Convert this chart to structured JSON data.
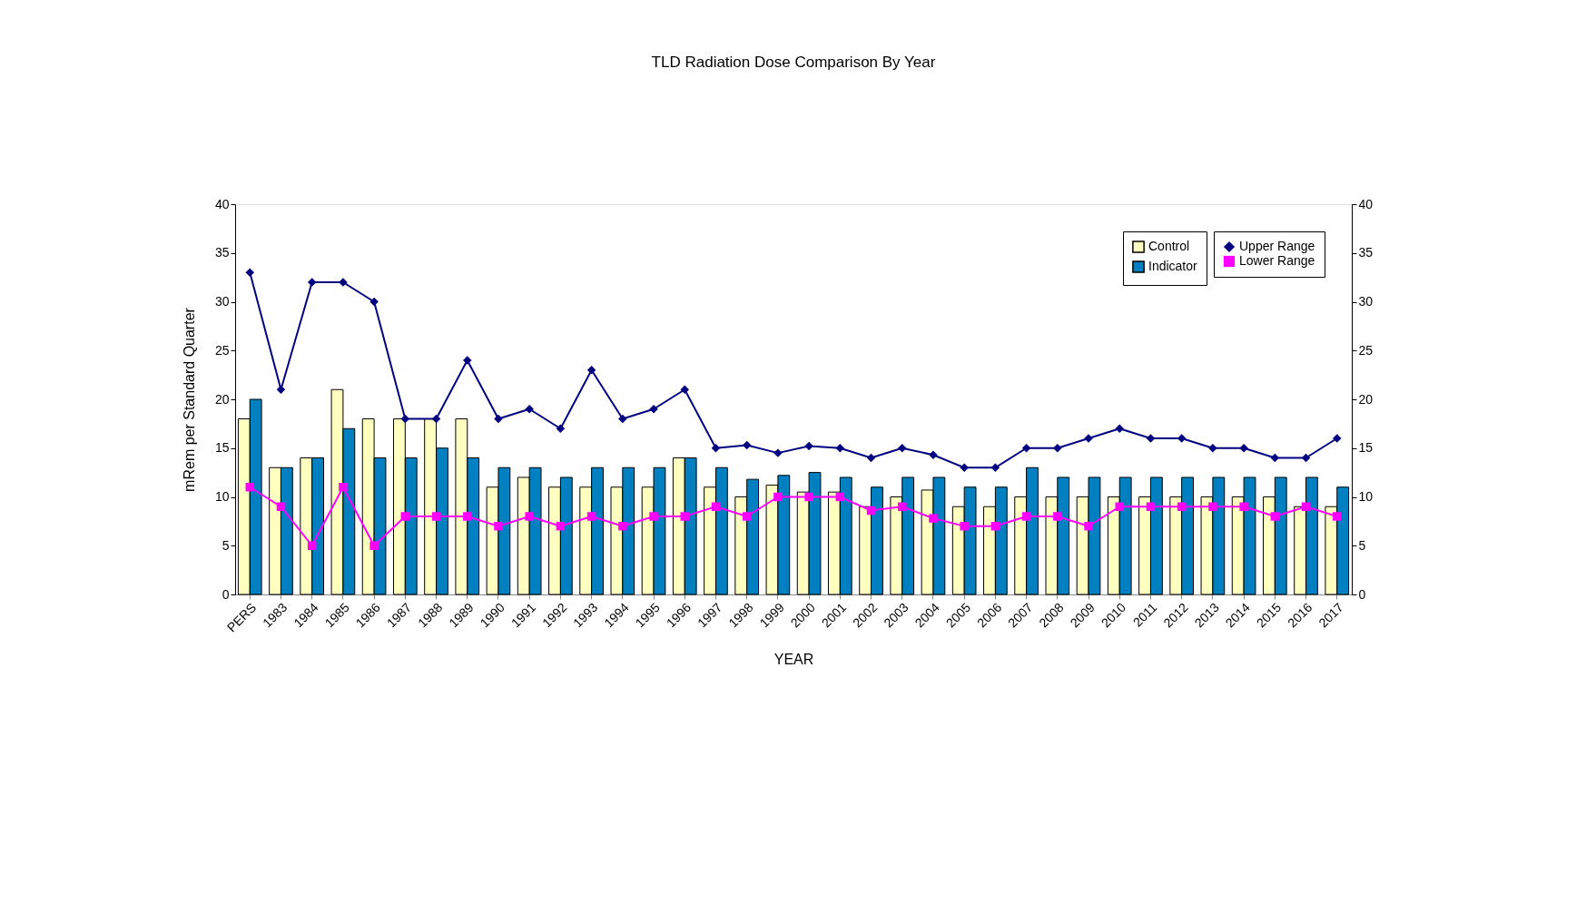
{
  "chart_data": {
    "type": "bar",
    "title": "TLD Radiation Dose Comparison By Year",
    "xlabel": "YEAR",
    "ylabel": "mRem per Standard Quarter",
    "categories": [
      "PERS",
      "1983",
      "1984",
      "1985",
      "1986",
      "1987",
      "1988",
      "1989",
      "1990",
      "1991",
      "1992",
      "1993",
      "1994",
      "1995",
      "1996",
      "1997",
      "1998",
      "1999",
      "2000",
      "2001",
      "2002",
      "2003",
      "2004",
      "2005",
      "2006",
      "2007",
      "2008",
      "2009",
      "2010",
      "2011",
      "2012",
      "2013",
      "2014",
      "2015",
      "2016",
      "2017"
    ],
    "series": [
      {
        "name": "Control",
        "color": "#ffffc0",
        "values": [
          18,
          13,
          14,
          21,
          18,
          18,
          18,
          18,
          11,
          12,
          11,
          11,
          11,
          11,
          14,
          11,
          10,
          11.2,
          10.5,
          10.5,
          9,
          10,
          10.7,
          9,
          9,
          10,
          10,
          10,
          10,
          10,
          10,
          10,
          10,
          10,
          9,
          9
        ]
      },
      {
        "name": "Indicator",
        "color": "#0080c0",
        "values": [
          20,
          13,
          14,
          17,
          14,
          14,
          15,
          14,
          13,
          13,
          12,
          13,
          13,
          13,
          14,
          13,
          11.8,
          12.2,
          12.5,
          12,
          11,
          12,
          12,
          11,
          11,
          13,
          12,
          12,
          12,
          12,
          12,
          12,
          12,
          12,
          12,
          11
        ]
      },
      {
        "name": "Upper Range",
        "type": "line",
        "color": "#000080",
        "marker": "diamond",
        "values": [
          33,
          21,
          32,
          32,
          30,
          18,
          18,
          24,
          18,
          19,
          17,
          23,
          18,
          19,
          21,
          15,
          15.3,
          14.5,
          15.2,
          15,
          14,
          15,
          14.3,
          13,
          13,
          15,
          15,
          16,
          17,
          16,
          16,
          15,
          15,
          14,
          14,
          16
        ]
      },
      {
        "name": "Lower Range",
        "type": "line",
        "color": "#ff00ff",
        "marker": "square",
        "values": [
          11,
          9,
          5,
          11,
          5,
          8,
          8,
          8,
          7,
          8,
          7,
          8,
          7,
          8,
          8,
          9,
          8,
          10,
          10,
          10,
          8.6,
          9,
          7.8,
          7,
          7,
          8,
          8,
          7,
          9,
          9,
          9,
          9,
          9,
          8,
          9,
          8
        ]
      }
    ],
    "ylim": [
      0,
      40
    ],
    "yticks": [
      0,
      5,
      10,
      15,
      20,
      25,
      30,
      35,
      40
    ],
    "y2lim": [
      0,
      40
    ],
    "y2ticks": [
      0,
      5,
      10,
      15,
      20,
      25,
      30,
      35,
      40
    ],
    "grid": false,
    "legend": "top right"
  }
}
